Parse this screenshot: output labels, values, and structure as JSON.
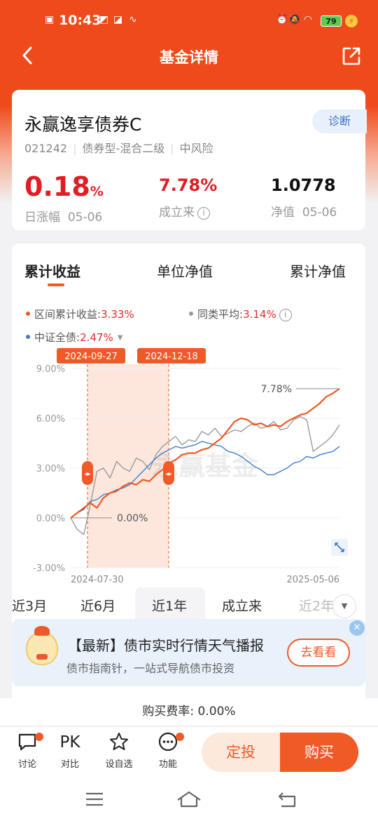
{
  "status_bar": {
    "time": "10:43",
    "battery": "79"
  },
  "nav": {
    "title": "基金详情"
  },
  "fund": {
    "name": "永赢逸享债券C",
    "code": "021242",
    "type": "债券型-混合二级",
    "risk": "中风险",
    "diagnose_label": "诊断",
    "daily_change_value": "0.18",
    "daily_change_unit": "%",
    "daily_change_label": "日涨幅",
    "daily_change_date": "05-06",
    "since_inception_value": "7.78%",
    "since_inception_label": "成立来",
    "nav_value": "1.0778",
    "nav_label": "净值",
    "nav_date": "05-06"
  },
  "chart_tabs": [
    "累计收益",
    "单位净值",
    "累计净值"
  ],
  "legend": {
    "interval_label": "区间累计收益:",
    "interval_value": "3.33%",
    "peer_label": "同类平均:",
    "peer_value": "3.14%",
    "index_label": "中证全债:",
    "index_value": "2.47%"
  },
  "chart_data": {
    "type": "line",
    "ylim": [
      -3.0,
      9.0
    ],
    "y_ticks": [
      "9.00%",
      "6.00%",
      "3.00%",
      "0.00%",
      "-3.00%"
    ],
    "x_labels": [
      "2024-07-30",
      "2025-05-06"
    ],
    "highlight_range": [
      "2024-09-27",
      "2024-12-18"
    ],
    "end_annotation": "7.78%",
    "zero_annotation": "0.00%",
    "watermark": "永赢基金",
    "series": [
      {
        "key": "fund",
        "color": "#ee5a24",
        "values": [
          0.0,
          0.3,
          0.6,
          0.9,
          0.6,
          1.2,
          1.5,
          1.6,
          1.9,
          2.1,
          2.0,
          2.3,
          2.2,
          2.6,
          2.9,
          3.3,
          3.5,
          3.8,
          3.9,
          3.9,
          4.1,
          4.2,
          4.5,
          4.8,
          5.3,
          5.8,
          6.0,
          5.9,
          5.6,
          5.7,
          5.5,
          5.6,
          5.5,
          5.8,
          6.0,
          6.2,
          6.3,
          6.6,
          6.9,
          7.3,
          7.5,
          7.78
        ]
      },
      {
        "key": "peer",
        "color": "#9a9a9a",
        "values": [
          0.0,
          -0.7,
          -1.0,
          0.8,
          2.8,
          3.0,
          2.4,
          3.4,
          3.0,
          2.8,
          3.6,
          3.4,
          2.9,
          3.8,
          4.3,
          4.6,
          4.9,
          4.4,
          4.7,
          4.6,
          5.2,
          5.0,
          5.4,
          4.9,
          5.1,
          5.3,
          5.2,
          5.5,
          5.7,
          5.4,
          5.5,
          5.8,
          5.3,
          5.4,
          5.9,
          6.1,
          5.9,
          4.0,
          4.3,
          4.6,
          5.0,
          5.6
        ]
      },
      {
        "key": "index",
        "color": "#3d7fd1",
        "values": [
          0.0,
          0.3,
          0.5,
          1.0,
          1.1,
          1.4,
          1.5,
          1.7,
          1.8,
          2.0,
          2.4,
          2.8,
          3.2,
          3.6,
          3.9,
          4.1,
          4.3,
          4.2,
          4.3,
          4.4,
          4.6,
          4.5,
          4.4,
          4.3,
          4.0,
          3.9,
          3.7,
          3.4,
          3.1,
          2.9,
          2.6,
          2.6,
          2.8,
          3.0,
          3.3,
          3.4,
          3.7,
          3.6,
          3.8,
          3.9,
          4.0,
          4.3
        ]
      }
    ]
  },
  "periods": [
    "近3月",
    "近6月",
    "近1年",
    "成立来",
    "近2年"
  ],
  "active_period": "近1年",
  "banner": {
    "title": "【最新】债市实时行情天气播报",
    "subtitle": "债市指南针，一站式导航债市投资",
    "button": "去看看"
  },
  "fee_text": "购买费率: 0.00%",
  "actions": {
    "discuss": "讨论",
    "compare_icon_text": "PK",
    "compare": "对比",
    "watchlist": "设自选",
    "function": "功能",
    "dingtou": "定投",
    "buy": "购买"
  }
}
